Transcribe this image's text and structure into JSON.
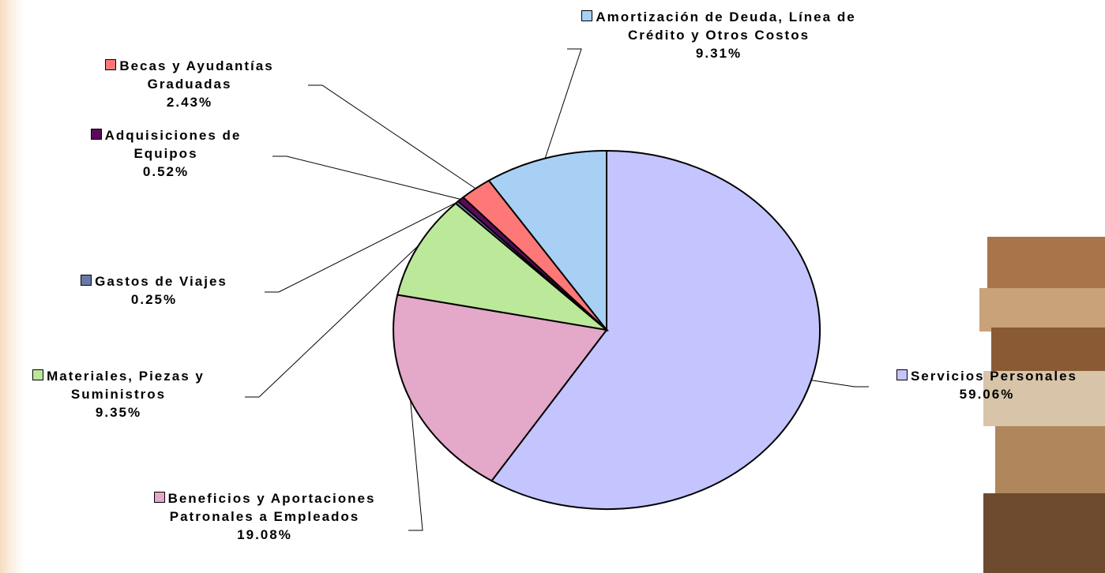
{
  "chart_data": {
    "type": "pie",
    "categories": [
      "Servicios Personales",
      "Beneficios y Aportaciones Patronales a Empleados",
      "Materiales, Piezas y Suministros",
      "Gastos de Viajes",
      "Adquisiciones de Equipos",
      "Becas y Ayudantías Graduadas",
      "Amortización de Deuda, Línea de Crédito y Otros Costos"
    ],
    "values": [
      59.06,
      19.08,
      9.35,
      0.25,
      0.52,
      2.43,
      9.31
    ],
    "value_labels": [
      "59.06%",
      "19.08%",
      "9.35%",
      "0.25%",
      "0.52%",
      "2.43%",
      "9.31%"
    ],
    "colors": [
      "#c4c4ff",
      "#e4a8c8",
      "#bce89a",
      "#6a78a8",
      "#5a0a5a",
      "#ff7878",
      "#a8d0f4"
    ]
  }
}
